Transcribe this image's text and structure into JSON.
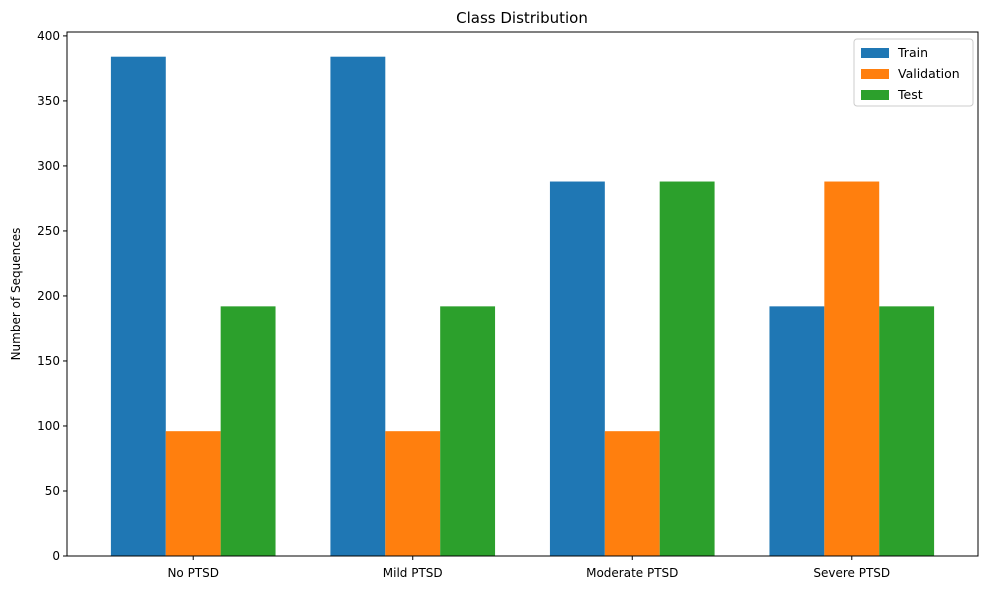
{
  "chart_data": {
    "type": "bar",
    "title": "Class Distribution",
    "xlabel": "",
    "ylabel": "Number of Sequences",
    "categories": [
      "No PTSD",
      "Mild PTSD",
      "Moderate PTSD",
      "Severe PTSD"
    ],
    "series": [
      {
        "name": "Train",
        "values": [
          384,
          384,
          288,
          192
        ],
        "color": "#1f77b4"
      },
      {
        "name": "Validation",
        "values": [
          96,
          96,
          96,
          288
        ],
        "color": "#ff7f0e"
      },
      {
        "name": "Test",
        "values": [
          192,
          192,
          288,
          192
        ],
        "color": "#2ca02c"
      }
    ],
    "ylim": [
      0,
      403
    ],
    "yticks": [
      "0",
      "50",
      "100",
      "150",
      "200",
      "250",
      "300",
      "350",
      "400"
    ],
    "grid": false,
    "legend_position": "top-right"
  }
}
